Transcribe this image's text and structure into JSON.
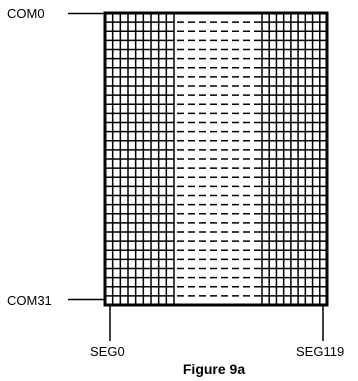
{
  "labels": {
    "com_top": "COM0",
    "com_bottom": "COM31",
    "seg_left": "SEG0",
    "seg_right": "SEG119"
  },
  "caption": "Figure 9a",
  "matrix": {
    "rows": 32,
    "left_block_columns": 9,
    "right_block_columns": 9,
    "elided_columns": 4
  },
  "colors": {
    "line": "#000000",
    "background": "#ffffff"
  }
}
